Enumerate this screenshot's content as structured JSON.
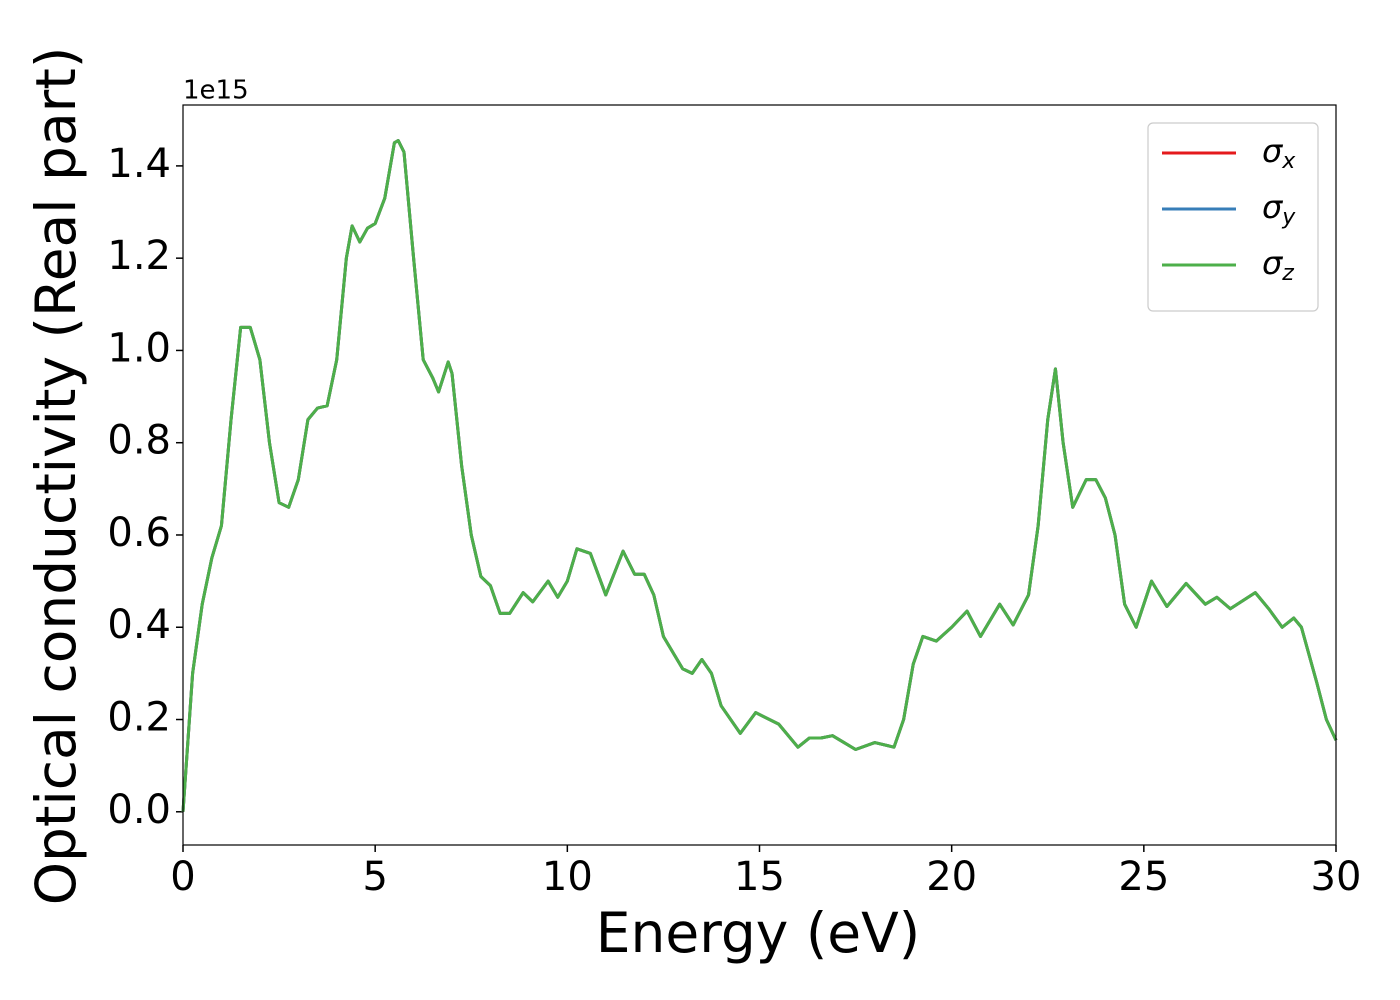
{
  "chart_data": {
    "type": "line",
    "xlabel": "Energy (eV)",
    "ylabel": "Optical conductivity (Real part)",
    "offset_label": "1e15",
    "xlim": [
      0,
      30
    ],
    "ylim": [
      -0.072,
      1.532
    ],
    "xticks": [
      0,
      5,
      10,
      15,
      20,
      25,
      30
    ],
    "yticks": [
      {
        "value": 0,
        "label": "0.0"
      },
      0.2,
      0.4,
      0.6,
      0.8,
      {
        "value": 1.0,
        "label": "1.0"
      },
      1.2,
      1.4
    ],
    "legend": "upper right",
    "x": [
      0,
      0.25,
      0.5,
      0.75,
      1.0,
      1.25,
      1.5,
      1.75,
      2.0,
      2.25,
      2.5,
      2.75,
      3.0,
      3.25,
      3.5,
      3.75,
      4.0,
      4.25,
      4.4,
      4.6,
      4.8,
      5.0,
      5.25,
      5.5,
      5.6,
      5.75,
      6.0,
      6.25,
      6.5,
      6.65,
      6.9,
      7.0,
      7.25,
      7.5,
      7.75,
      8.0,
      8.25,
      8.5,
      8.85,
      9.1,
      9.5,
      9.75,
      10.0,
      10.25,
      10.6,
      11.0,
      11.45,
      11.75,
      12.0,
      12.25,
      12.5,
      13.0,
      13.25,
      13.5,
      13.75,
      14.0,
      14.5,
      14.9,
      15.5,
      16.0,
      16.3,
      16.6,
      16.9,
      17.2,
      17.5,
      18.0,
      18.5,
      18.75,
      19.0,
      19.25,
      19.6,
      20.0,
      20.4,
      20.75,
      21.25,
      21.6,
      22.0,
      22.25,
      22.5,
      22.7,
      22.9,
      23.15,
      23.5,
      23.75,
      24.0,
      24.25,
      24.5,
      24.8,
      25.2,
      25.6,
      26.1,
      26.6,
      26.9,
      27.25,
      27.9,
      28.25,
      28.6,
      28.9,
      29.1,
      29.5,
      29.75,
      30
    ],
    "series": [
      {
        "name": "σx",
        "color": "#e41a1c",
        "values": [
          0.0,
          0.3,
          0.45,
          0.55,
          0.62,
          0.85,
          1.05,
          1.05,
          0.98,
          0.8,
          0.67,
          0.66,
          0.72,
          0.85,
          0.875,
          0.88,
          0.98,
          1.2,
          1.27,
          1.235,
          1.265,
          1.275,
          1.33,
          1.45,
          1.455,
          1.43,
          1.2,
          0.98,
          0.94,
          0.91,
          0.975,
          0.95,
          0.75,
          0.6,
          0.51,
          0.49,
          0.43,
          0.43,
          0.475,
          0.455,
          0.5,
          0.465,
          0.5,
          0.57,
          0.56,
          0.47,
          0.565,
          0.515,
          0.515,
          0.47,
          0.38,
          0.31,
          0.3,
          0.33,
          0.3,
          0.23,
          0.17,
          0.215,
          0.19,
          0.14,
          0.16,
          0.16,
          0.165,
          0.15,
          0.135,
          0.15,
          0.14,
          0.2,
          0.32,
          0.38,
          0.37,
          0.4,
          0.435,
          0.38,
          0.45,
          0.405,
          0.47,
          0.62,
          0.85,
          0.96,
          0.8,
          0.66,
          0.72,
          0.72,
          0.68,
          0.6,
          0.45,
          0.4,
          0.5,
          0.445,
          0.495,
          0.45,
          0.465,
          0.44,
          0.475,
          0.44,
          0.4,
          0.42,
          0.4,
          0.28,
          0.2,
          0.155
        ]
      },
      {
        "name": "σy",
        "color": "#377eb8",
        "values": [
          0.0,
          0.3,
          0.45,
          0.55,
          0.62,
          0.85,
          1.05,
          1.05,
          0.98,
          0.8,
          0.67,
          0.66,
          0.72,
          0.85,
          0.875,
          0.88,
          0.98,
          1.2,
          1.27,
          1.235,
          1.265,
          1.275,
          1.33,
          1.45,
          1.455,
          1.43,
          1.2,
          0.98,
          0.94,
          0.91,
          0.975,
          0.95,
          0.75,
          0.6,
          0.51,
          0.49,
          0.43,
          0.43,
          0.475,
          0.455,
          0.5,
          0.465,
          0.5,
          0.57,
          0.56,
          0.47,
          0.565,
          0.515,
          0.515,
          0.47,
          0.38,
          0.31,
          0.3,
          0.33,
          0.3,
          0.23,
          0.17,
          0.215,
          0.19,
          0.14,
          0.16,
          0.16,
          0.165,
          0.15,
          0.135,
          0.15,
          0.14,
          0.2,
          0.32,
          0.38,
          0.37,
          0.4,
          0.435,
          0.38,
          0.45,
          0.405,
          0.47,
          0.62,
          0.85,
          0.96,
          0.8,
          0.66,
          0.72,
          0.72,
          0.68,
          0.6,
          0.45,
          0.4,
          0.5,
          0.445,
          0.495,
          0.45,
          0.465,
          0.44,
          0.475,
          0.44,
          0.4,
          0.42,
          0.4,
          0.28,
          0.2,
          0.155
        ]
      },
      {
        "name": "σz",
        "color": "#4daf4a",
        "values": [
          0.0,
          0.3,
          0.45,
          0.55,
          0.62,
          0.85,
          1.05,
          1.05,
          0.98,
          0.8,
          0.67,
          0.66,
          0.72,
          0.85,
          0.875,
          0.88,
          0.98,
          1.2,
          1.27,
          1.235,
          1.265,
          1.275,
          1.33,
          1.45,
          1.455,
          1.43,
          1.2,
          0.98,
          0.94,
          0.91,
          0.975,
          0.95,
          0.75,
          0.6,
          0.51,
          0.49,
          0.43,
          0.43,
          0.475,
          0.455,
          0.5,
          0.465,
          0.5,
          0.57,
          0.56,
          0.47,
          0.565,
          0.515,
          0.515,
          0.47,
          0.38,
          0.31,
          0.3,
          0.33,
          0.3,
          0.23,
          0.17,
          0.215,
          0.19,
          0.14,
          0.16,
          0.16,
          0.165,
          0.15,
          0.135,
          0.15,
          0.14,
          0.2,
          0.32,
          0.38,
          0.37,
          0.4,
          0.435,
          0.38,
          0.45,
          0.405,
          0.47,
          0.62,
          0.85,
          0.96,
          0.8,
          0.66,
          0.72,
          0.72,
          0.68,
          0.6,
          0.45,
          0.4,
          0.5,
          0.445,
          0.495,
          0.45,
          0.465,
          0.44,
          0.475,
          0.44,
          0.4,
          0.42,
          0.4,
          0.28,
          0.2,
          0.155
        ]
      }
    ]
  }
}
